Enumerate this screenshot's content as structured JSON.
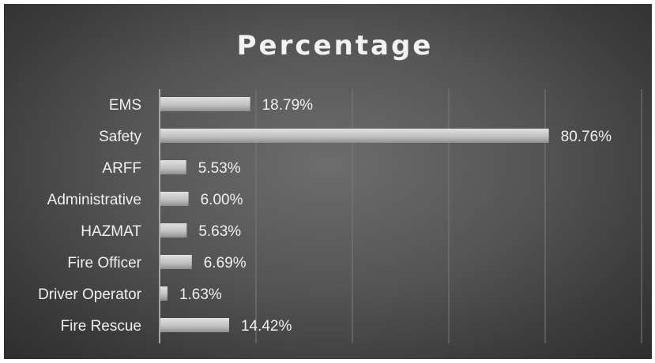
{
  "chart_data": {
    "type": "bar",
    "orientation": "horizontal",
    "title": "Percentage",
    "categories": [
      "EMS",
      "Safety",
      "ARFF",
      "Administrative",
      "HAZMAT",
      "Fire Officer",
      "Driver Operator",
      "Fire Rescue"
    ],
    "values": [
      18.79,
      80.76,
      5.53,
      6.0,
      5.63,
      6.69,
      1.63,
      14.42
    ],
    "value_labels": [
      "18.79%",
      "80.76%",
      "5.53%",
      "6.00%",
      "5.63%",
      "6.69%",
      "1.63%",
      "14.42%"
    ],
    "xlim": [
      0,
      100
    ],
    "grid": true,
    "legend": "none",
    "colors": {
      "bar": "#c4c4c4",
      "text": "#f0f0f0",
      "grid": "#7a7a7a",
      "background": "#4f4f4f"
    }
  }
}
